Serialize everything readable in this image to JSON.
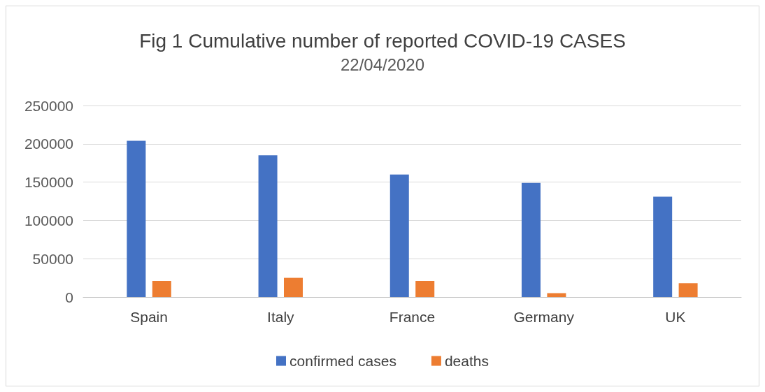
{
  "chart_data": {
    "type": "bar",
    "title": "Fig 1 Cumulative number of reported COVID-19 CASES",
    "subtitle": "22/04/2020",
    "categories": [
      "Spain",
      "Italy",
      "France",
      "Germany",
      "UK"
    ],
    "series": [
      {
        "name": "confirmed cases",
        "color": "#4472c4",
        "values": [
          204000,
          185000,
          160000,
          149000,
          131000
        ]
      },
      {
        "name": "deaths",
        "color": "#ed7d31",
        "values": [
          21000,
          25000,
          21000,
          5000,
          18000
        ]
      }
    ],
    "ylim": [
      0,
      250000
    ],
    "yticks": [
      0,
      50000,
      100000,
      150000,
      200000,
      250000
    ],
    "grid": "y",
    "legend": "bottom"
  }
}
